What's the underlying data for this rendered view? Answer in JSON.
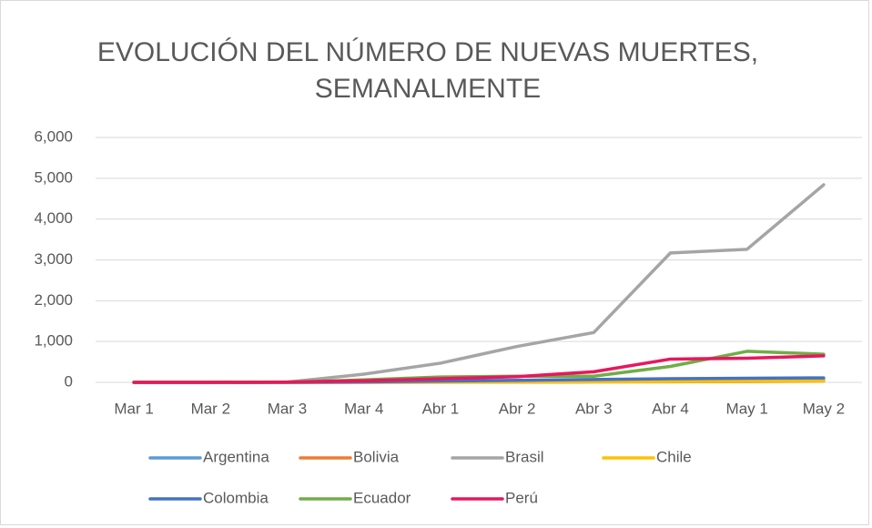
{
  "chart_data": {
    "type": "line",
    "title": "EVOLUCIÓN DEL NÚMERO DE NUEVAS MUERTES, SEMANALMENTE",
    "categories": [
      "Mar 1",
      "Mar 2",
      "Mar 3",
      "Mar 4",
      "Abr 1",
      "Abr 2",
      "Abr 3",
      "Abr 4",
      "May 1",
      "May 2"
    ],
    "series": [
      {
        "name": "Argentina",
        "color": "#5B9BD5",
        "values": [
          0,
          0,
          2,
          10,
          20,
          30,
          40,
          50,
          50,
          60
        ]
      },
      {
        "name": "Bolivia",
        "color": "#ED7D31",
        "values": [
          0,
          0,
          0,
          1,
          3,
          5,
          10,
          15,
          20,
          30
        ]
      },
      {
        "name": "Brasil",
        "color": "#A5A5A5",
        "values": [
          0,
          0,
          5,
          200,
          470,
          880,
          1220,
          3170,
          3260,
          4840
        ]
      },
      {
        "name": "Chile",
        "color": "#FFC000",
        "values": [
          0,
          0,
          0,
          2,
          5,
          10,
          15,
          20,
          30,
          35
        ]
      },
      {
        "name": "Colombia",
        "color": "#4472C4",
        "values": [
          0,
          0,
          0,
          10,
          30,
          50,
          70,
          90,
          100,
          110
        ]
      },
      {
        "name": "Ecuador",
        "color": "#70AD47",
        "values": [
          0,
          0,
          5,
          60,
          130,
          150,
          150,
          390,
          760,
          690
        ]
      },
      {
        "name": "Perú",
        "color": "#E8175D",
        "values": [
          0,
          0,
          5,
          40,
          90,
          140,
          260,
          570,
          590,
          650
        ]
      }
    ],
    "ylim": [
      0,
      6000
    ],
    "yticks": [
      0,
      {
        "value": 1000,
        "label": "1,000"
      },
      {
        "value": 2000,
        "label": "2,000"
      },
      {
        "value": 3000,
        "label": "3,000"
      },
      {
        "value": 4000,
        "label": "4,000"
      },
      {
        "value": 5000,
        "label": "5,000"
      },
      {
        "value": 6000,
        "label": "6,000"
      }
    ],
    "grid": true,
    "legend": "bottom"
  }
}
